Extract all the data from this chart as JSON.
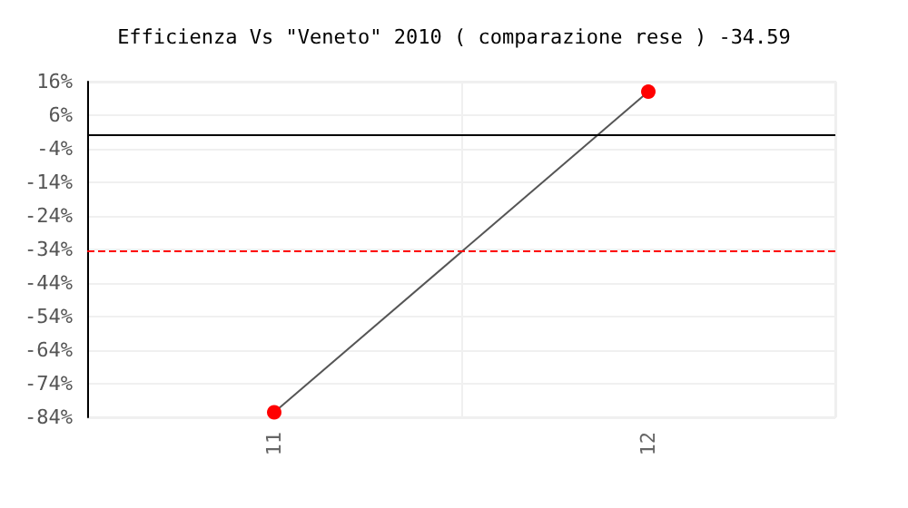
{
  "chart_data": {
    "type": "line",
    "title": "Efficienza Vs \"Veneto\" 2010 ( comparazione rese ) -34.59",
    "categories": [
      "11",
      "12"
    ],
    "series": [
      {
        "color": "#555555",
        "colors": [
          "#ff0000",
          "#ff0000"
        ],
        "values": [
          -82.5,
          13
        ]
      }
    ],
    "ylim": [
      -84,
      16
    ],
    "yticks": [
      {
        "value": 16,
        "label": "16%"
      },
      {
        "value": 6,
        "label": "6%"
      },
      {
        "value": -4,
        "label": "-4%"
      },
      {
        "value": -14,
        "label": "-14%"
      },
      {
        "value": -24,
        "label": "-24%"
      },
      {
        "value": -34,
        "label": "-34%"
      },
      {
        "value": -44,
        "label": "-44%"
      },
      {
        "value": -54,
        "label": "-54%"
      },
      {
        "value": -64,
        "label": "-64%"
      },
      {
        "value": -74,
        "label": "-74%"
      },
      {
        "value": -84,
        "label": "-84%"
      }
    ],
    "ref_lines": [
      {
        "axis": "y",
        "value": 0,
        "color": "#000000",
        "line_style": "solid"
      },
      {
        "axis": "y",
        "value": -34.59,
        "color": "#ff0000",
        "line_style": "dashed"
      }
    ],
    "grid": true,
    "marker": "circle"
  }
}
